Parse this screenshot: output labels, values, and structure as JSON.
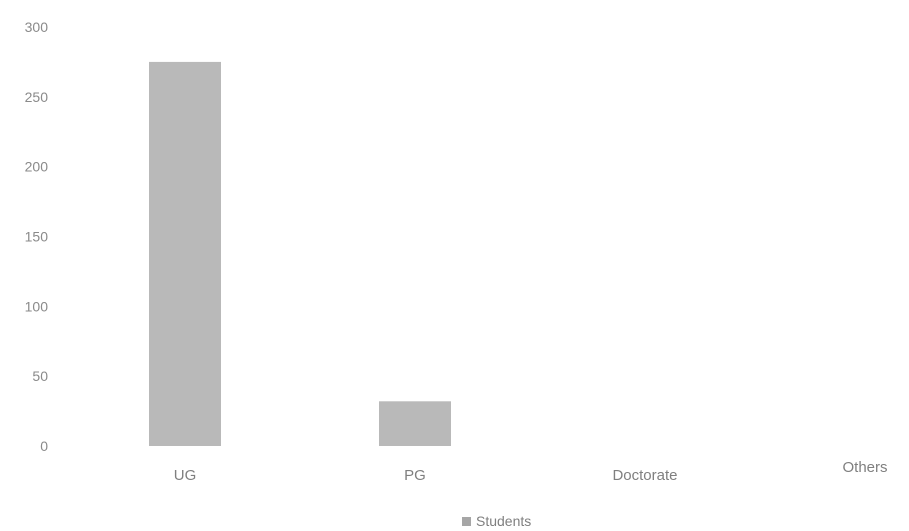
{
  "chart_data": {
    "type": "bar",
    "categories": [
      "UG",
      "PG",
      "Doctorate",
      "Others"
    ],
    "series": [
      {
        "name": "Students",
        "values": [
          275,
          32,
          0,
          0
        ]
      }
    ],
    "yticks": [
      "0",
      "50",
      "100",
      "150",
      "200",
      "250",
      "300"
    ],
    "ylim": [
      0,
      300
    ],
    "grid": false,
    "legend": "bottom",
    "colors": {
      "bar": "#b9b9b9",
      "legend_marker": "#a6a6a6",
      "text": "#7f7f7f"
    }
  }
}
